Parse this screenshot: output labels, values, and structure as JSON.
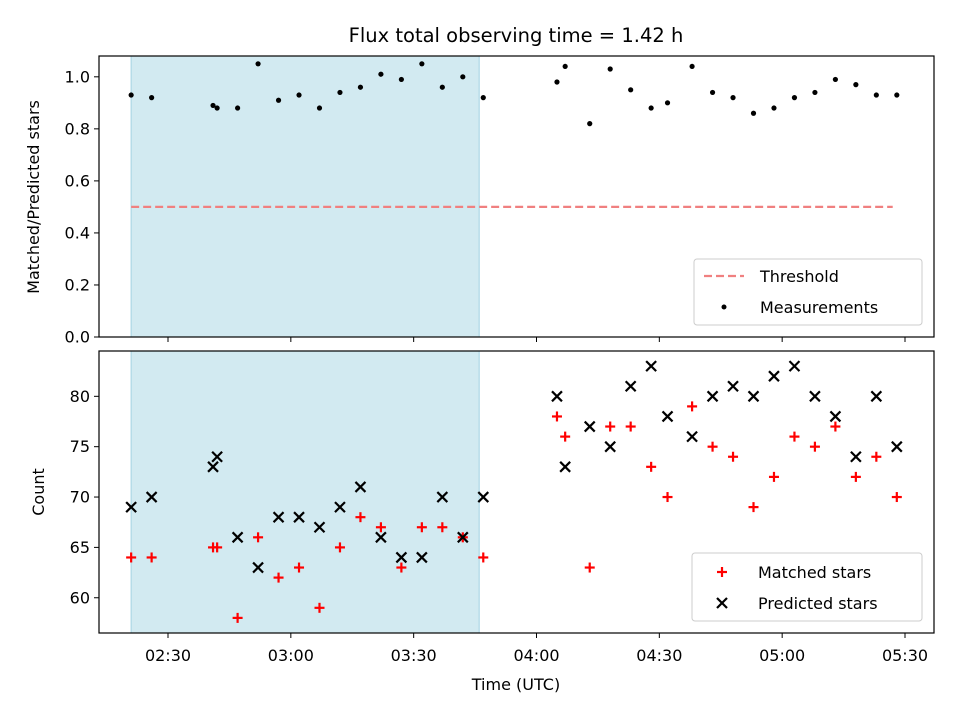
{
  "chart_data": {
    "type": "scatter",
    "title": "Flux total observing time = 1.42 h",
    "xlabel": "Time (UTC)",
    "x_tick_labels": [
      "02:30",
      "03:00",
      "03:30",
      "04:00",
      "04:30",
      "05:00",
      "05:30"
    ],
    "shaded_interval": {
      "start": "02:21",
      "end": "03:46",
      "color": "#add8e6"
    },
    "panels": [
      {
        "ylabel": "Matched/Predicted stars",
        "ylim": [
          0,
          1.08
        ],
        "yticks": [
          0.0,
          0.2,
          0.4,
          0.6,
          0.8,
          1.0
        ],
        "ytick_labels": [
          "0.0",
          "0.2",
          "0.4",
          "0.6",
          "0.8",
          "1.0"
        ],
        "legend": "lower right",
        "series": [
          {
            "name": "Threshold",
            "kind": "line",
            "color": "#f08080",
            "x": [
              "02:21",
              "05:27"
            ],
            "y": [
              0.5,
              0.5
            ]
          },
          {
            "name": "Measurements",
            "kind": "dot",
            "color": "#000000",
            "x": [
              "02:21",
              "02:26",
              "02:41",
              "02:42",
              "02:47",
              "02:52",
              "02:57",
              "03:02",
              "03:07",
              "03:12",
              "03:17",
              "03:22",
              "03:27",
              "03:32",
              "03:37",
              "03:42",
              "03:47",
              "04:05",
              "04:07",
              "04:13",
              "04:18",
              "04:23",
              "04:28",
              "04:32",
              "04:38",
              "04:43",
              "04:48",
              "04:53",
              "04:58",
              "05:03",
              "05:08",
              "05:13",
              "05:18",
              "05:23",
              "05:28"
            ],
            "y": [
              0.93,
              0.92,
              0.89,
              0.88,
              0.88,
              1.05,
              0.91,
              0.93,
              0.88,
              0.94,
              0.96,
              1.01,
              0.99,
              1.05,
              0.96,
              1.0,
              0.92,
              0.98,
              1.04,
              0.82,
              1.03,
              0.95,
              0.88,
              0.9,
              1.04,
              0.94,
              0.92,
              0.86,
              0.88,
              0.92,
              0.94,
              0.99,
              0.97,
              0.93,
              0.93
            ]
          }
        ]
      },
      {
        "ylabel": "Count",
        "ylim": [
          56.5,
          84.5
        ],
        "yticks": [
          60,
          65,
          70,
          75,
          80
        ],
        "ytick_labels": [
          "60",
          "65",
          "70",
          "75",
          "80"
        ],
        "legend": "lower right",
        "series": [
          {
            "name": "Matched stars",
            "kind": "plus",
            "color": "#ff0000",
            "x": [
              "02:21",
              "02:26",
              "02:41",
              "02:42",
              "02:47",
              "02:52",
              "02:57",
              "03:02",
              "03:07",
              "03:12",
              "03:17",
              "03:22",
              "03:27",
              "03:32",
              "03:37",
              "03:42",
              "03:47",
              "04:05",
              "04:07",
              "04:13",
              "04:18",
              "04:23",
              "04:28",
              "04:32",
              "04:38",
              "04:43",
              "04:48",
              "04:53",
              "04:58",
              "05:03",
              "05:08",
              "05:13",
              "05:18",
              "05:23",
              "05:28"
            ],
            "y": [
              64,
              64,
              65,
              65,
              58,
              66,
              62,
              63,
              59,
              65,
              68,
              67,
              63,
              67,
              67,
              66,
              64,
              78,
              76,
              63,
              77,
              77,
              73,
              70,
              79,
              75,
              74,
              69,
              72,
              76,
              75,
              77,
              72,
              74,
              70
            ]
          },
          {
            "name": "Predicted stars",
            "kind": "x",
            "color": "#000000",
            "x": [
              "02:21",
              "02:26",
              "02:41",
              "02:42",
              "02:47",
              "02:52",
              "02:57",
              "03:02",
              "03:07",
              "03:12",
              "03:17",
              "03:22",
              "03:27",
              "03:32",
              "03:37",
              "03:42",
              "03:47",
              "04:05",
              "04:07",
              "04:13",
              "04:18",
              "04:23",
              "04:28",
              "04:32",
              "04:38",
              "04:43",
              "04:48",
              "04:53",
              "04:58",
              "05:03",
              "05:08",
              "05:13",
              "05:18",
              "05:23",
              "05:28"
            ],
            "y": [
              69,
              70,
              73,
              74,
              66,
              63,
              68,
              68,
              67,
              69,
              71,
              66,
              64,
              64,
              70,
              66,
              70,
              80,
              73,
              77,
              75,
              81,
              83,
              78,
              76,
              80,
              81,
              80,
              82,
              83,
              80,
              78,
              74,
              80,
              75
            ]
          }
        ]
      }
    ]
  }
}
